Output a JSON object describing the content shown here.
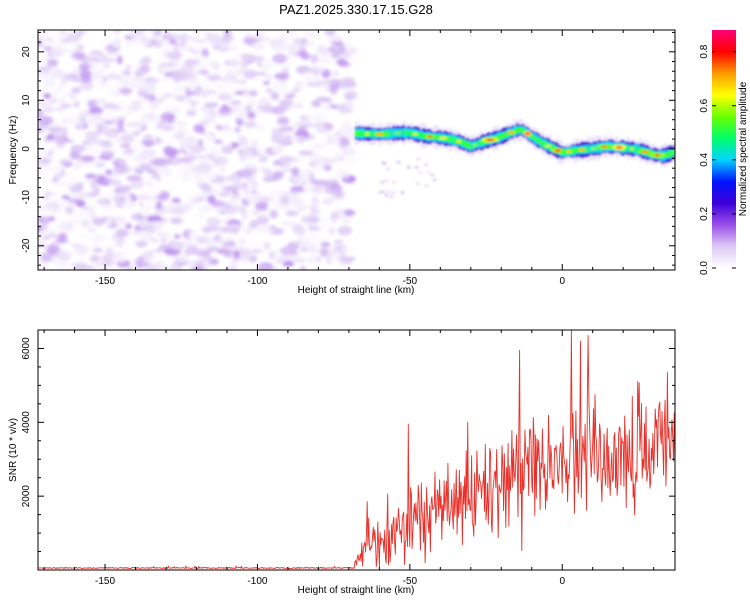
{
  "title": "PAZ1.2025.330.17.15.G28",
  "chart_data": [
    {
      "type": "heatmap",
      "name": "spectrogram",
      "title": "PAZ1.2025.330.17.15.G28",
      "xlabel": "Height of straight line (km)",
      "ylabel": "Frequency (Hz)",
      "xlim": [
        -172,
        37
      ],
      "ylim": [
        -25,
        24.5
      ],
      "xticks": [
        -150,
        -100,
        -50,
        0
      ],
      "yticks": [
        -20,
        -10,
        0,
        10,
        20
      ],
      "noise_region_x": [
        -172,
        -69
      ],
      "noise_amplitude_range": [
        0.0,
        0.12
      ],
      "ridge": {
        "x": [
          -68,
          -60,
          -55,
          -50,
          -45,
          -40,
          -35,
          -30,
          -25,
          -20,
          -15,
          -13,
          -10,
          -5,
          0,
          5,
          10,
          15,
          20,
          25,
          30,
          33,
          37
        ],
        "freq": [
          3.2,
          3,
          3.2,
          3.3,
          2.6,
          2.3,
          1.8,
          0.5,
          1.6,
          2.5,
          3.8,
          3.9,
          2.5,
          0.7,
          -0.8,
          -0.3,
          0,
          0.5,
          0.2,
          -0.2,
          -1.2,
          -1.5,
          -0.7
        ],
        "peak_amplitude": 0.9
      },
      "colorbar": {
        "label": "Normalized spectral amplitude",
        "range": [
          0.0,
          0.88
        ],
        "ticks": [
          0.0,
          0.2,
          0.4,
          0.6,
          0.8
        ],
        "tick_labels": [
          "0.0",
          "0.2",
          "0.4",
          "0.6",
          "0.8"
        ],
        "colors": [
          "#ffffff",
          "#dcc8f4",
          "#9a4ee8",
          "#3c00d8",
          "#0014ff",
          "#00d4ff",
          "#00ff6a",
          "#6aff00",
          "#ffff00",
          "#ff9a00",
          "#ff0000",
          "#ff007a"
        ]
      }
    },
    {
      "type": "line",
      "name": "snr",
      "xlabel": "Height of straight line (km)",
      "ylabel": "SNR (10 * v/v)",
      "xlim": [
        -172,
        37
      ],
      "ylim": [
        0,
        6500
      ],
      "xticks": [
        -150,
        -100,
        -50,
        0
      ],
      "yticks": [
        2000,
        4000,
        6000
      ],
      "color": "#e8302a",
      "noise_floor": [
        -172,
        -68,
        40,
        70
      ],
      "envelope": {
        "x": [
          -68,
          -65,
          -60,
          -55,
          -50,
          -45,
          -40,
          -35,
          -30,
          -25,
          -20,
          -15,
          -10,
          -5,
          0,
          5,
          10,
          15,
          20,
          25,
          30,
          37
        ],
        "mean": [
          200,
          700,
          900,
          1000,
          1400,
          1500,
          1700,
          1800,
          1900,
          2100,
          2400,
          2500,
          2600,
          2700,
          2900,
          3000,
          3100,
          3200,
          3200,
          3300,
          3300,
          3400
        ],
        "spread": [
          120,
          500,
          700,
          800,
          1000,
          1000,
          1100,
          1100,
          1200,
          1200,
          1300,
          1400,
          1400,
          1500,
          1500,
          1500,
          1500,
          1500,
          1400,
          1400,
          1300,
          1300
        ]
      },
      "spikes": [
        {
          "x": -64,
          "y": 1850
        },
        {
          "x": -50.5,
          "y": 3950
        },
        {
          "x": -31,
          "y": 4000
        },
        {
          "x": -14,
          "y": 5950
        },
        {
          "x": 3,
          "y": 6500
        },
        {
          "x": 6,
          "y": 6200
        },
        {
          "x": 8.5,
          "y": 6350
        },
        {
          "x": 34.5,
          "y": 5350
        }
      ]
    }
  ]
}
